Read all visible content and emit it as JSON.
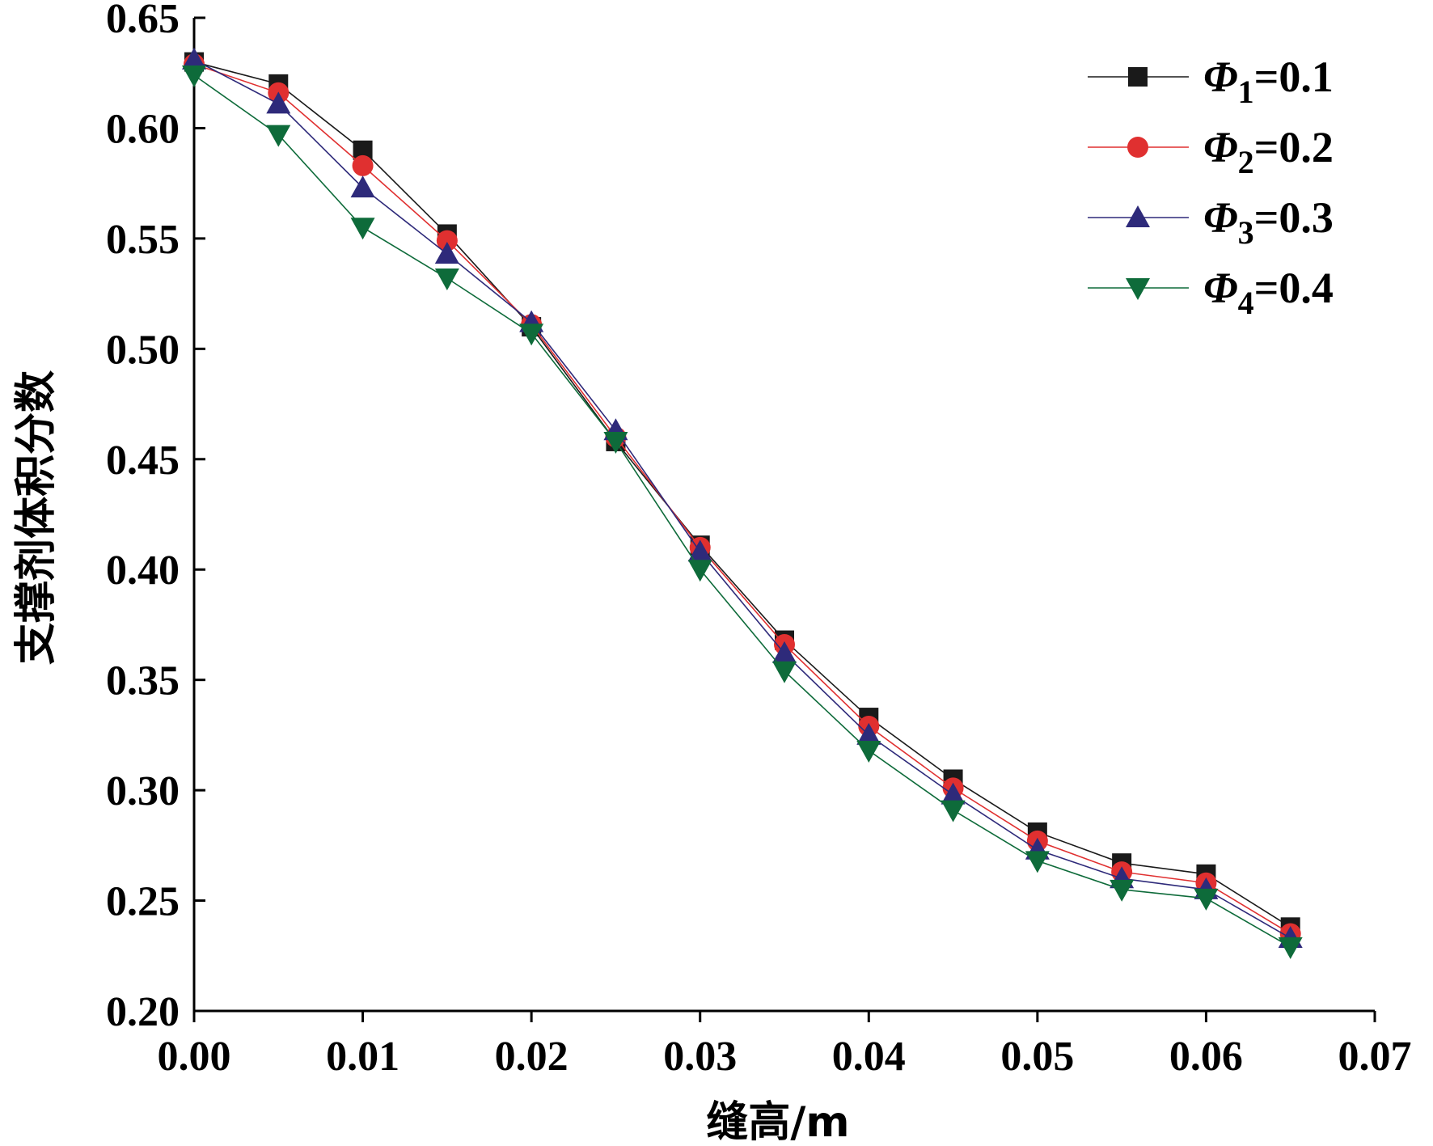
{
  "chart_data": {
    "type": "line",
    "xlabel": "缝高/m",
    "ylabel": "支撑剂体积分数",
    "xlim": [
      0.0,
      0.07
    ],
    "ylim": [
      0.2,
      0.65
    ],
    "x_ticks": [
      "0.00",
      "0.01",
      "0.02",
      "0.03",
      "0.04",
      "0.05",
      "0.06",
      "0.07"
    ],
    "y_ticks": [
      "0.20",
      "0.25",
      "0.30",
      "0.35",
      "0.40",
      "0.45",
      "0.50",
      "0.55",
      "0.60",
      "0.65"
    ],
    "x_tick_values": [
      0.0,
      0.01,
      0.02,
      0.03,
      0.04,
      0.05,
      0.06,
      0.07
    ],
    "y_tick_values": [
      0.2,
      0.25,
      0.3,
      0.35,
      0.4,
      0.45,
      0.5,
      0.55,
      0.6,
      0.65
    ],
    "grid": false,
    "legend_position": "top-right",
    "x": [
      0.0,
      0.005,
      0.01,
      0.015,
      0.02,
      0.025,
      0.03,
      0.035,
      0.04,
      0.045,
      0.05,
      0.055,
      0.06,
      0.065
    ],
    "series": [
      {
        "name": "Φ1=0.1",
        "legend": {
          "symbol": "Φ",
          "subscript": "1",
          "value": "=0.1"
        },
        "color": "#1a1a1a",
        "marker": "square",
        "values": [
          0.63,
          0.62,
          0.59,
          0.552,
          0.51,
          0.458,
          0.411,
          0.368,
          0.333,
          0.305,
          0.281,
          0.267,
          0.262,
          0.238
        ]
      },
      {
        "name": "Φ2=0.2",
        "legend": {
          "symbol": "Φ",
          "subscript": "2",
          "value": "=0.2"
        },
        "color": "#e03030",
        "marker": "circle",
        "values": [
          0.629,
          0.616,
          0.583,
          0.549,
          0.511,
          0.46,
          0.41,
          0.366,
          0.329,
          0.301,
          0.277,
          0.263,
          0.258,
          0.235
        ]
      },
      {
        "name": "Φ3=0.3",
        "legend": {
          "symbol": "Φ",
          "subscript": "3",
          "value": "=0.3"
        },
        "color": "#2e2a7a",
        "marker": "triangle-up",
        "values": [
          0.631,
          0.611,
          0.573,
          0.543,
          0.512,
          0.463,
          0.408,
          0.362,
          0.325,
          0.298,
          0.273,
          0.26,
          0.255,
          0.233
        ]
      },
      {
        "name": "Φ4=0.4",
        "legend": {
          "symbol": "Φ",
          "subscript": "4",
          "value": "=0.4"
        },
        "color": "#0e6b3a",
        "marker": "triangle-down",
        "values": [
          0.624,
          0.597,
          0.555,
          0.532,
          0.507,
          0.458,
          0.4,
          0.354,
          0.318,
          0.291,
          0.268,
          0.255,
          0.251,
          0.229
        ]
      }
    ]
  }
}
